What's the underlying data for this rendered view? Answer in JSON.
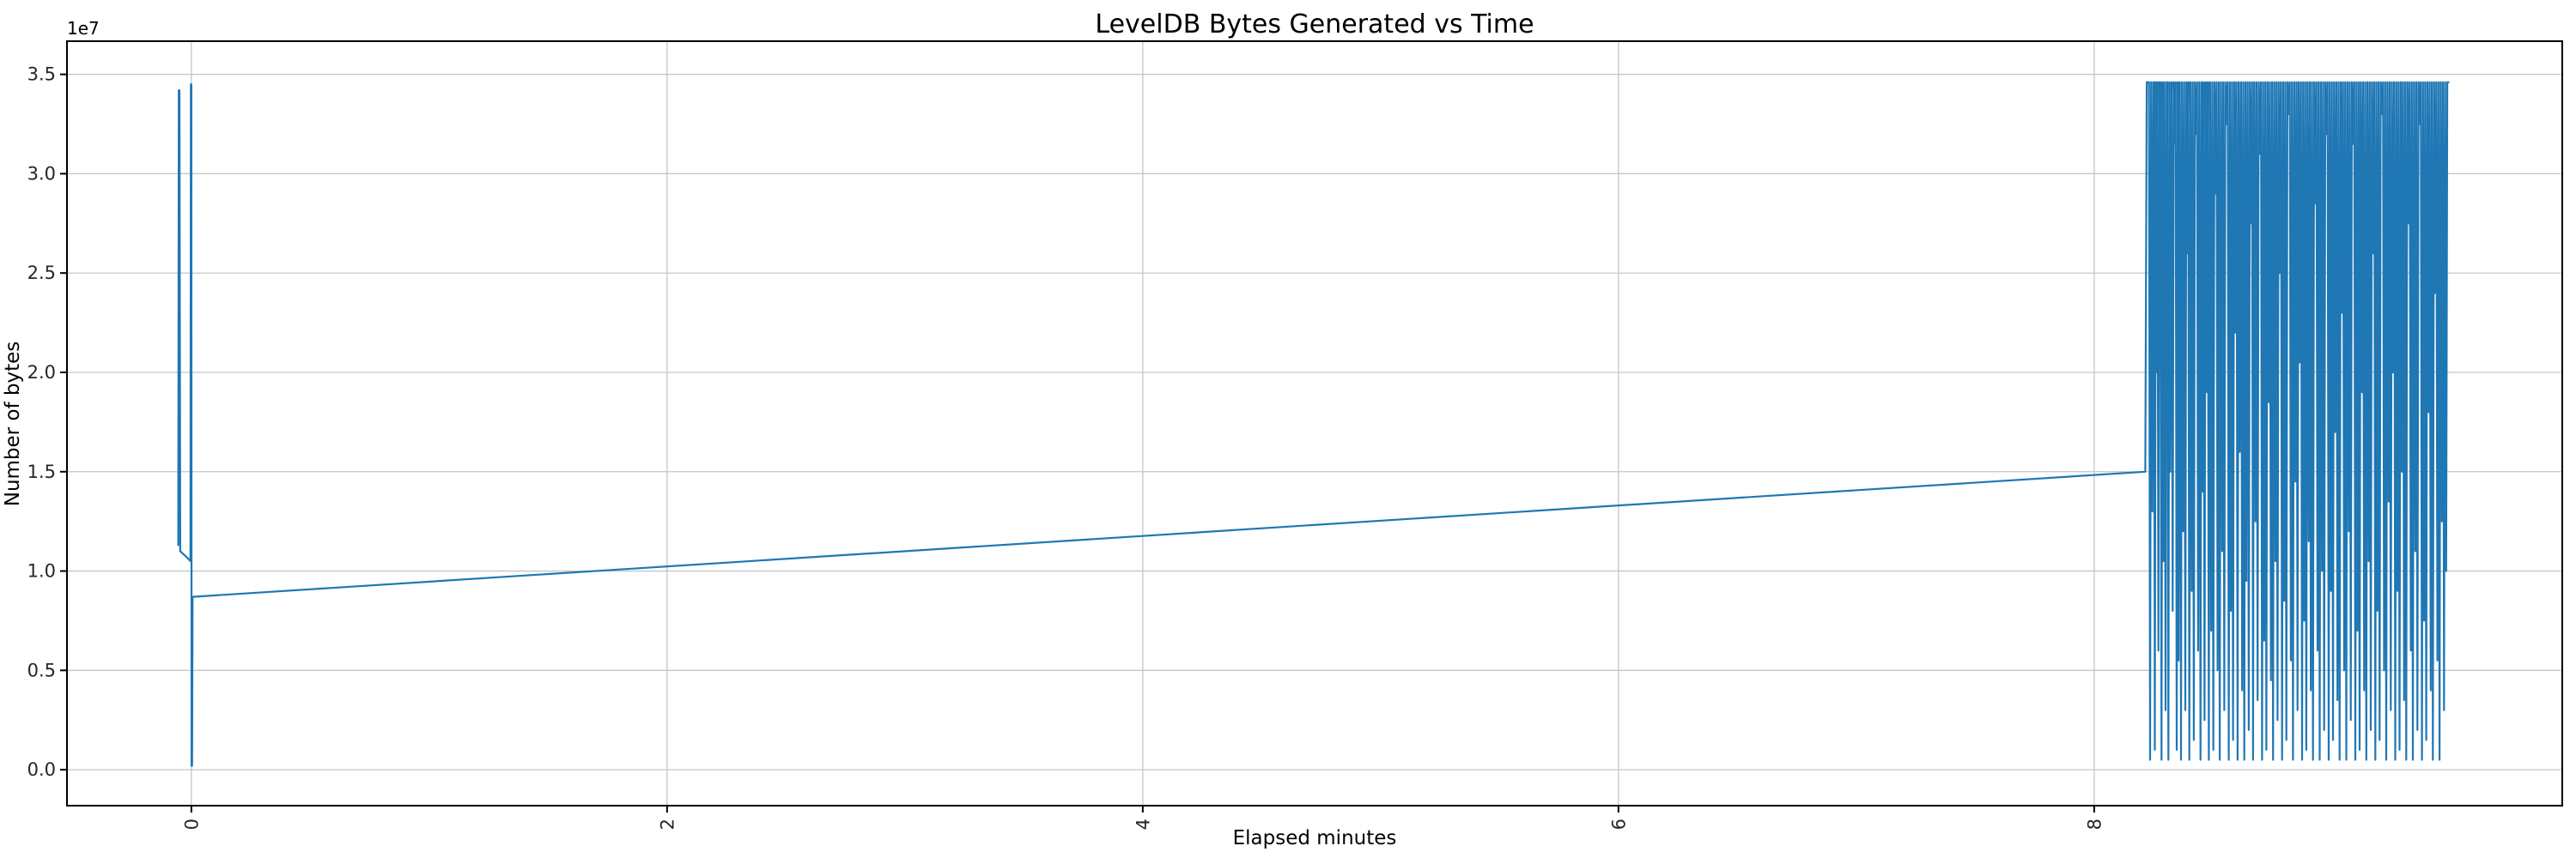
{
  "figure": {
    "title": "LevelDB Bytes Generated vs Time",
    "xlabel": "Elapsed minutes",
    "ylabel": "Number of bytes",
    "offset_text": "1e7",
    "background_color": "#ffffff",
    "line_color": "#1f77b4",
    "grid_color": "#c6c6c6",
    "spine_color": "#000000"
  },
  "chart_data": {
    "type": "line",
    "title": "LevelDB Bytes Generated vs Time",
    "xlabel": "Elapsed minutes",
    "ylabel": "Number of bytes",
    "y_offset_label": "1e7",
    "x_unit": "minutes",
    "y_unit": "bytes",
    "grid": true,
    "legend": "none",
    "xlim": [
      -0.523,
      9.968
    ],
    "ylim": [
      -1810000,
      36670000
    ],
    "x_tick_values": [
      0,
      2,
      4,
      6,
      8
    ],
    "x_ticks": [
      "0",
      "2",
      "4",
      "6",
      "8"
    ],
    "x_tick_rotation": 90,
    "y_tick_values": [
      0,
      5000000,
      10000000,
      15000000,
      20000000,
      25000000,
      30000000,
      35000000
    ],
    "y_ticks": [
      "0.0",
      "0.5",
      "1.0",
      "1.5",
      "2.0",
      "2.5",
      "3.0",
      "3.5"
    ],
    "series": [
      {
        "name": "bytes generated",
        "color": "#1f77b4"
      }
    ],
    "initial_points": [
      [
        -0.055,
        11300000
      ],
      [
        -0.053,
        34200000
      ],
      [
        -0.05,
        34200000
      ],
      [
        -0.047,
        11000000
      ],
      [
        -0.02,
        10700000
      ],
      [
        -0.004,
        10500000
      ],
      [
        -0.002,
        34500000
      ],
      [
        0.0,
        34500000
      ],
      [
        0.001,
        200000
      ],
      [
        0.003,
        200000
      ],
      [
        0.005,
        8700000
      ],
      [
        8.215,
        15000000
      ]
    ],
    "burst": {
      "rise_x": 8.221,
      "end_x": 9.49,
      "top": 34600000,
      "halfwidth": 0.0045,
      "dips": [
        [
          8.235,
          500000
        ],
        [
          8.245,
          13000000
        ],
        [
          8.255,
          1000000
        ],
        [
          8.262,
          20000000
        ],
        [
          8.27,
          6000000
        ],
        [
          8.283,
          500000
        ],
        [
          8.291,
          10500000
        ],
        [
          8.3,
          3000000
        ],
        [
          8.312,
          500000
        ],
        [
          8.32,
          15000000
        ],
        [
          8.33,
          8000000
        ],
        [
          8.338,
          31500000
        ],
        [
          8.347,
          1000000
        ],
        [
          8.355,
          5500000
        ],
        [
          8.365,
          500000
        ],
        [
          8.374,
          12000000
        ],
        [
          8.383,
          3000000
        ],
        [
          8.392,
          26000000
        ],
        [
          8.4,
          500000
        ],
        [
          8.41,
          9000000
        ],
        [
          8.419,
          1500000
        ],
        [
          8.428,
          32000000
        ],
        [
          8.437,
          6000000
        ],
        [
          8.447,
          500000
        ],
        [
          8.456,
          14000000
        ],
        [
          8.464,
          2500000
        ],
        [
          8.474,
          19000000
        ],
        [
          8.482,
          500000
        ],
        [
          8.492,
          7000000
        ],
        [
          8.501,
          1000000
        ],
        [
          8.51,
          29000000
        ],
        [
          8.519,
          5000000
        ],
        [
          8.528,
          500000
        ],
        [
          8.538,
          11000000
        ],
        [
          8.547,
          3000000
        ],
        [
          8.556,
          32500000
        ],
        [
          8.566,
          500000
        ],
        [
          8.575,
          8000000
        ],
        [
          8.584,
          1500000
        ],
        [
          8.594,
          22000000
        ],
        [
          8.603,
          500000
        ],
        [
          8.612,
          16000000
        ],
        [
          8.622,
          4000000
        ],
        [
          8.631,
          500000
        ],
        [
          8.64,
          9500000
        ],
        [
          8.65,
          2000000
        ],
        [
          8.659,
          27500000
        ],
        [
          8.668,
          500000
        ],
        [
          8.678,
          12500000
        ],
        [
          8.687,
          3500000
        ],
        [
          8.696,
          31000000
        ],
        [
          8.706,
          500000
        ],
        [
          8.715,
          6500000
        ],
        [
          8.724,
          1000000
        ],
        [
          8.734,
          18500000
        ],
        [
          8.743,
          4500000
        ],
        [
          8.752,
          500000
        ],
        [
          8.762,
          10500000
        ],
        [
          8.771,
          2500000
        ],
        [
          8.78,
          25000000
        ],
        [
          8.79,
          500000
        ],
        [
          8.799,
          8500000
        ],
        [
          8.808,
          1500000
        ],
        [
          8.818,
          33000000
        ],
        [
          8.827,
          5500000
        ],
        [
          8.836,
          500000
        ],
        [
          8.846,
          14500000
        ],
        [
          8.855,
          3000000
        ],
        [
          8.864,
          20500000
        ],
        [
          8.874,
          500000
        ],
        [
          8.883,
          7500000
        ],
        [
          8.892,
          1000000
        ],
        [
          8.902,
          11500000
        ],
        [
          8.911,
          4000000
        ],
        [
          8.92,
          500000
        ],
        [
          8.93,
          28500000
        ],
        [
          8.939,
          6000000
        ],
        [
          8.948,
          500000
        ],
        [
          8.958,
          10000000
        ],
        [
          8.967,
          2000000
        ],
        [
          8.976,
          32000000
        ],
        [
          8.986,
          500000
        ],
        [
          8.995,
          9000000
        ],
        [
          9.004,
          1500000
        ],
        [
          9.014,
          17000000
        ],
        [
          9.023,
          3500000
        ],
        [
          9.032,
          500000
        ],
        [
          9.042,
          23000000
        ],
        [
          9.051,
          5000000
        ],
        [
          9.06,
          500000
        ],
        [
          9.07,
          12000000
        ],
        [
          9.079,
          2500000
        ],
        [
          9.088,
          31500000
        ],
        [
          9.098,
          500000
        ],
        [
          9.107,
          7000000
        ],
        [
          9.116,
          1000000
        ],
        [
          9.126,
          19000000
        ],
        [
          9.135,
          4000000
        ],
        [
          9.144,
          500000
        ],
        [
          9.154,
          10500000
        ],
        [
          9.163,
          2000000
        ],
        [
          9.172,
          26000000
        ],
        [
          9.182,
          500000
        ],
        [
          9.191,
          8000000
        ],
        [
          9.2,
          1500000
        ],
        [
          9.21,
          33000000
        ],
        [
          9.219,
          5000000
        ],
        [
          9.228,
          500000
        ],
        [
          9.238,
          13500000
        ],
        [
          9.247,
          3000000
        ],
        [
          9.256,
          20000000
        ],
        [
          9.266,
          500000
        ],
        [
          9.275,
          9000000
        ],
        [
          9.284,
          1000000
        ],
        [
          9.294,
          15000000
        ],
        [
          9.303,
          3500000
        ],
        [
          9.312,
          500000
        ],
        [
          9.322,
          27500000
        ],
        [
          9.331,
          6000000
        ],
        [
          9.34,
          500000
        ],
        [
          9.35,
          11000000
        ],
        [
          9.359,
          2000000
        ],
        [
          9.368,
          32500000
        ],
        [
          9.378,
          500000
        ],
        [
          9.387,
          7500000
        ],
        [
          9.396,
          1500000
        ],
        [
          9.406,
          18000000
        ],
        [
          9.415,
          4000000
        ],
        [
          9.424,
          500000
        ],
        [
          9.434,
          24000000
        ],
        [
          9.443,
          5500000
        ],
        [
          9.452,
          500000
        ],
        [
          9.462,
          12500000
        ],
        [
          9.471,
          3000000
        ],
        [
          9.48,
          10000000
        ]
      ]
    }
  }
}
